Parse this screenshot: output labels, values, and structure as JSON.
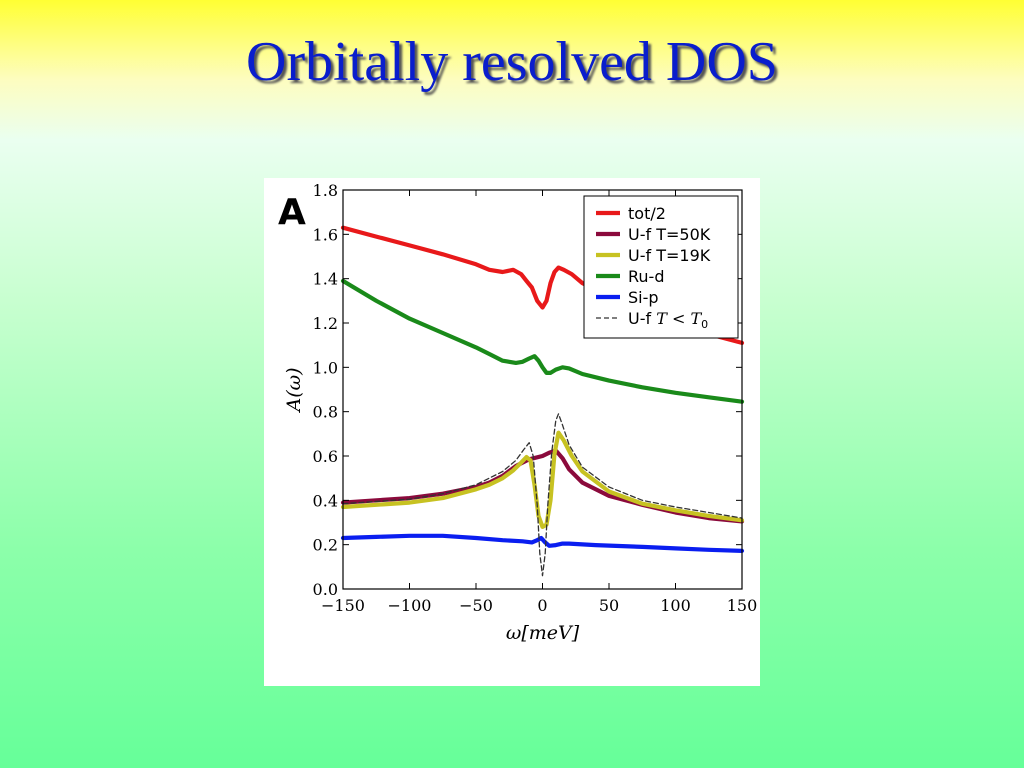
{
  "slide": {
    "title": "Orbitally resolved DOS"
  },
  "chart_data": {
    "type": "line",
    "panel_label": "A",
    "xlabel": "ω[meV]",
    "ylabel": "A(ω)",
    "xlim": [
      -150,
      150
    ],
    "ylim": [
      0.0,
      1.8
    ],
    "xticks": [
      "−150",
      "−100",
      "−50",
      "0",
      "50",
      "100",
      "150"
    ],
    "xtick_values": [
      -150,
      -100,
      -50,
      0,
      50,
      100,
      150
    ],
    "yticks": [
      "0.0",
      "0.2",
      "0.4",
      "0.6",
      "0.8",
      "1.0",
      "1.2",
      "1.4",
      "1.6",
      "1.8"
    ],
    "ytick_values": [
      0.0,
      0.2,
      0.4,
      0.6,
      0.8,
      1.0,
      1.2,
      1.4,
      1.6,
      1.8
    ],
    "grid": false,
    "legend_position": "top-right",
    "series": [
      {
        "name": "tot/2",
        "color": "#e8191a",
        "style": "solid",
        "points": [
          [
            -150,
            1.63
          ],
          [
            -125,
            1.59
          ],
          [
            -100,
            1.55
          ],
          [
            -75,
            1.51
          ],
          [
            -50,
            1.465
          ],
          [
            -40,
            1.44
          ],
          [
            -30,
            1.43
          ],
          [
            -22,
            1.44
          ],
          [
            -16,
            1.42
          ],
          [
            -12,
            1.39
          ],
          [
            -8,
            1.36
          ],
          [
            -4,
            1.3
          ],
          [
            0,
            1.27
          ],
          [
            3,
            1.3
          ],
          [
            6,
            1.38
          ],
          [
            9,
            1.43
          ],
          [
            12,
            1.45
          ],
          [
            16,
            1.44
          ],
          [
            22,
            1.42
          ],
          [
            30,
            1.38
          ],
          [
            40,
            1.35
          ],
          [
            50,
            1.3
          ],
          [
            70,
            1.25
          ],
          [
            100,
            1.19
          ],
          [
            125,
            1.15
          ],
          [
            150,
            1.11
          ]
        ]
      },
      {
        "name": "U-f T=50K",
        "color": "#8b0a3c",
        "style": "solid",
        "points": [
          [
            -150,
            0.39
          ],
          [
            -125,
            0.4
          ],
          [
            -100,
            0.41
          ],
          [
            -75,
            0.43
          ],
          [
            -50,
            0.46
          ],
          [
            -40,
            0.48
          ],
          [
            -30,
            0.51
          ],
          [
            -20,
            0.555
          ],
          [
            -10,
            0.585
          ],
          [
            0,
            0.6
          ],
          [
            5,
            0.615
          ],
          [
            10,
            0.625
          ],
          [
            15,
            0.59
          ],
          [
            20,
            0.54
          ],
          [
            30,
            0.48
          ],
          [
            50,
            0.42
          ],
          [
            75,
            0.38
          ],
          [
            100,
            0.345
          ],
          [
            125,
            0.32
          ],
          [
            150,
            0.305
          ]
        ]
      },
      {
        "name": "U-f T=19K",
        "color": "#c7c222",
        "style": "solid",
        "points": [
          [
            -150,
            0.37
          ],
          [
            -125,
            0.38
          ],
          [
            -100,
            0.39
          ],
          [
            -75,
            0.41
          ],
          [
            -50,
            0.45
          ],
          [
            -40,
            0.47
          ],
          [
            -30,
            0.5
          ],
          [
            -22,
            0.535
          ],
          [
            -16,
            0.57
          ],
          [
            -12,
            0.595
          ],
          [
            -9,
            0.58
          ],
          [
            -6,
            0.47
          ],
          [
            -3,
            0.33
          ],
          [
            0,
            0.28
          ],
          [
            3,
            0.29
          ],
          [
            6,
            0.4
          ],
          [
            9,
            0.61
          ],
          [
            12,
            0.705
          ],
          [
            16,
            0.67
          ],
          [
            22,
            0.6
          ],
          [
            30,
            0.53
          ],
          [
            50,
            0.44
          ],
          [
            75,
            0.385
          ],
          [
            100,
            0.355
          ],
          [
            125,
            0.33
          ],
          [
            150,
            0.31
          ]
        ]
      },
      {
        "name": "Ru-d",
        "color": "#1a8a1a",
        "style": "solid",
        "points": [
          [
            -150,
            1.39
          ],
          [
            -125,
            1.3
          ],
          [
            -100,
            1.22
          ],
          [
            -75,
            1.155
          ],
          [
            -50,
            1.09
          ],
          [
            -40,
            1.06
          ],
          [
            -30,
            1.03
          ],
          [
            -20,
            1.02
          ],
          [
            -15,
            1.025
          ],
          [
            -10,
            1.04
          ],
          [
            -6,
            1.05
          ],
          [
            -3,
            1.03
          ],
          [
            0,
            1.0
          ],
          [
            3,
            0.975
          ],
          [
            6,
            0.975
          ],
          [
            10,
            0.99
          ],
          [
            15,
            1.0
          ],
          [
            20,
            0.995
          ],
          [
            30,
            0.97
          ],
          [
            50,
            0.94
          ],
          [
            75,
            0.91
          ],
          [
            100,
            0.885
          ],
          [
            125,
            0.865
          ],
          [
            150,
            0.845
          ]
        ]
      },
      {
        "name": "Si-p",
        "color": "#0a1ef0",
        "style": "solid",
        "points": [
          [
            -150,
            0.23
          ],
          [
            -125,
            0.235
          ],
          [
            -100,
            0.24
          ],
          [
            -75,
            0.24
          ],
          [
            -50,
            0.23
          ],
          [
            -30,
            0.22
          ],
          [
            -15,
            0.215
          ],
          [
            -8,
            0.21
          ],
          [
            -4,
            0.22
          ],
          [
            -1,
            0.23
          ],
          [
            2,
            0.21
          ],
          [
            5,
            0.195
          ],
          [
            10,
            0.198
          ],
          [
            15,
            0.205
          ],
          [
            20,
            0.205
          ],
          [
            40,
            0.198
          ],
          [
            75,
            0.19
          ],
          [
            100,
            0.183
          ],
          [
            125,
            0.177
          ],
          [
            150,
            0.172
          ]
        ]
      },
      {
        "name": "U-f",
        "name_math": "T < T",
        "name_sub": "0",
        "color": "#333333",
        "style": "dashed",
        "points": [
          [
            -150,
            0.385
          ],
          [
            -100,
            0.405
          ],
          [
            -75,
            0.43
          ],
          [
            -50,
            0.47
          ],
          [
            -30,
            0.53
          ],
          [
            -20,
            0.58
          ],
          [
            -14,
            0.63
          ],
          [
            -10,
            0.66
          ],
          [
            -7,
            0.6
          ],
          [
            -4,
            0.38
          ],
          [
            -2,
            0.16
          ],
          [
            0,
            0.06
          ],
          [
            2,
            0.16
          ],
          [
            4,
            0.38
          ],
          [
            7,
            0.62
          ],
          [
            10,
            0.76
          ],
          [
            12,
            0.79
          ],
          [
            15,
            0.74
          ],
          [
            20,
            0.65
          ],
          [
            30,
            0.55
          ],
          [
            50,
            0.46
          ],
          [
            75,
            0.4
          ],
          [
            100,
            0.37
          ],
          [
            125,
            0.345
          ],
          [
            150,
            0.32
          ]
        ]
      }
    ]
  }
}
